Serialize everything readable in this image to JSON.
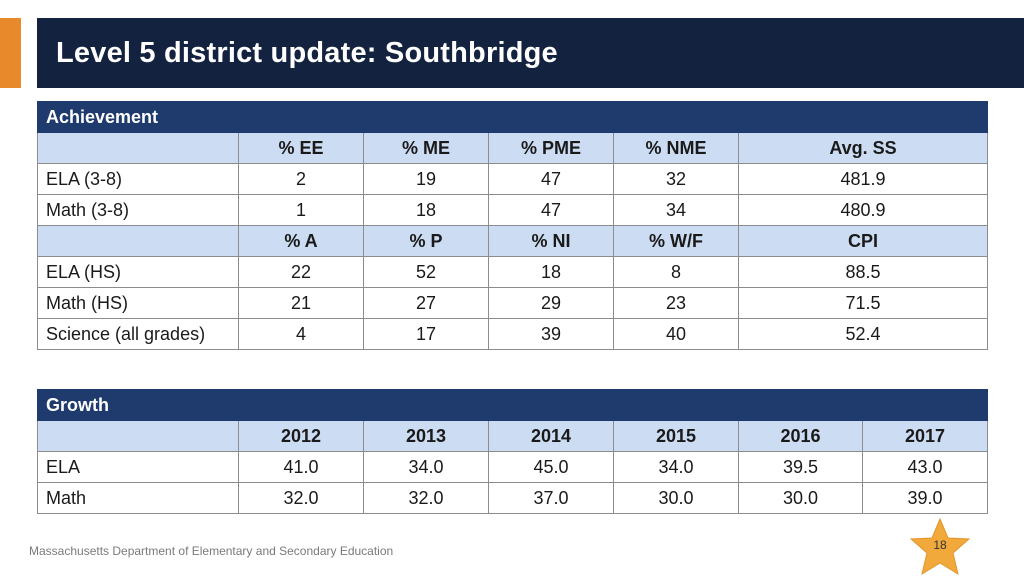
{
  "slide": {
    "title": "Level 5 district update: Southbridge",
    "footer": "Massachusetts Department of Elementary and Secondary Education",
    "page_number": "18",
    "colors": {
      "accent": "#e8892b",
      "title_bg": "#13223f",
      "section_bg": "#1f3a6c",
      "header_bg": "#ccdcf2",
      "star": "#f2a93b"
    }
  },
  "achievement": {
    "section_label": "Achievement",
    "header1": [
      "% EE",
      "% ME",
      "% PME",
      "% NME",
      "Avg. SS"
    ],
    "rows1": [
      {
        "label": "ELA (3-8)",
        "values": [
          "2",
          "19",
          "47",
          "32",
          "481.9"
        ]
      },
      {
        "label": "Math (3-8)",
        "values": [
          "1",
          "18",
          "47",
          "34",
          "480.9"
        ]
      }
    ],
    "header2": [
      "% A",
      "% P",
      "% NI",
      "% W/F",
      "CPI"
    ],
    "rows2": [
      {
        "label": "ELA (HS)",
        "values": [
          "22",
          "52",
          "18",
          "8",
          "88.5"
        ]
      },
      {
        "label": "Math (HS)",
        "values": [
          "21",
          "27",
          "29",
          "23",
          "71.5"
        ]
      },
      {
        "label": "Science (all grades)",
        "values": [
          "4",
          "17",
          "39",
          "40",
          "52.4"
        ]
      }
    ]
  },
  "growth": {
    "section_label": "Growth",
    "years": [
      "2012",
      "2013",
      "2014",
      "2015",
      "2016",
      "2017"
    ],
    "rows": [
      {
        "label": "ELA",
        "values": [
          "41.0",
          "34.0",
          "45.0",
          "34.0",
          "39.5",
          "43.0"
        ]
      },
      {
        "label": "Math",
        "values": [
          "32.0",
          "32.0",
          "37.0",
          "30.0",
          "30.0",
          "39.0"
        ]
      }
    ]
  }
}
